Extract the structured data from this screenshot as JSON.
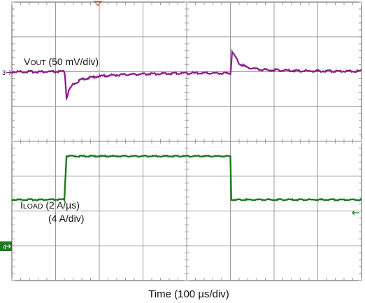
{
  "chart_data": {
    "type": "line",
    "xlabel": "Time (100 µs/div)",
    "time_div_us": 100,
    "divisions": {
      "x": 8,
      "y": 8
    },
    "grid": true,
    "trigger_marker_color": "#d94e2e",
    "series": [
      {
        "name": "VOUT (50 mV/div)",
        "label_main": "V",
        "label_small": "OUT",
        "label_rest": " (50 mV/div)",
        "channel": "3",
        "color": "#8b1a8b",
        "unit": "mV",
        "ref_div": 2.0,
        "points": [
          [
            0,
            0
          ],
          [
            120,
            0
          ],
          [
            121,
            -3
          ],
          [
            122,
            -10
          ],
          [
            125,
            -38
          ],
          [
            130,
            -28
          ],
          [
            140,
            -18
          ],
          [
            160,
            -11
          ],
          [
            190,
            -7
          ],
          [
            230,
            -5
          ],
          [
            260,
            -4
          ],
          [
            320,
            -3
          ],
          [
            395,
            -2
          ],
          [
            500,
            -2
          ],
          [
            501,
            2
          ],
          [
            504,
            30
          ],
          [
            509,
            24
          ],
          [
            520,
            12
          ],
          [
            540,
            6
          ],
          [
            570,
            3
          ],
          [
            620,
            2
          ],
          [
            680,
            1
          ],
          [
            800,
            1
          ]
        ]
      },
      {
        "name": "ILOAD (2 A/µs) (4 A/div)",
        "label_main": "I",
        "label_small": "LOAD",
        "label_rest": " (2 A/µs)",
        "label_line2": "(4 A/div)",
        "channel": "4",
        "color": "#1e7a1e",
        "unit": "A",
        "ref_div": 6.2,
        "points": [
          [
            0,
            2.1
          ],
          [
            120,
            2.1
          ],
          [
            125,
            7.1
          ],
          [
            300,
            7.1
          ],
          [
            500,
            7.1
          ],
          [
            502,
            2.1
          ],
          [
            800,
            2.1
          ]
        ]
      }
    ]
  }
}
